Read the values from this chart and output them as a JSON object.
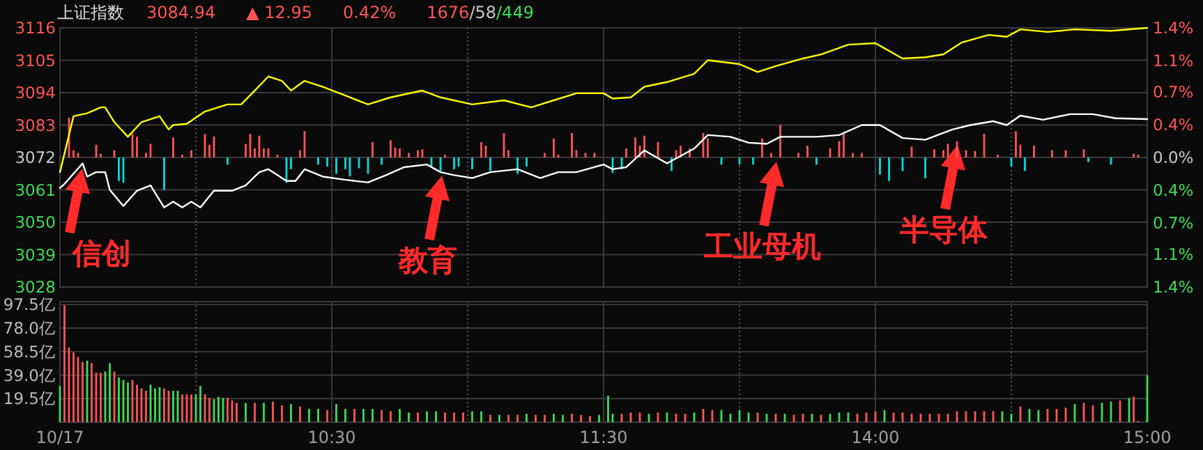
{
  "chart_data": [
    {
      "type": "line",
      "title": "上证指数",
      "annotations": [
        "3084.94",
        "▲ 12.95",
        "0.42%",
        "1676/58/449",
        "信创",
        "教育",
        "工业母机",
        "半导体"
      ],
      "categories": [
        null,
        null,
        null,
        null,
        null,
        null,
        null,
        null,
        null,
        null,
        null,
        null,
        null,
        null,
        null,
        null,
        null,
        null,
        null,
        null,
        null,
        null,
        null,
        null,
        null,
        null,
        null,
        null,
        null,
        null,
        null,
        null,
        null,
        null,
        null,
        null,
        null,
        null,
        null,
        null,
        null,
        null,
        null,
        null,
        null,
        null,
        null,
        null,
        null,
        null,
        null,
        null,
        null,
        null,
        null,
        null,
        null,
        null,
        null,
        null,
        null,
        null,
        null,
        null,
        null,
        null,
        null,
        null,
        null,
        null,
        null,
        null,
        null,
        null,
        null,
        null,
        null,
        null,
        null,
        null,
        null,
        null,
        null,
        null,
        null,
        null,
        null,
        null,
        null,
        null,
        null,
        null,
        null,
        null,
        null,
        null,
        null,
        null,
        null,
        null,
        null,
        null,
        null,
        null,
        null,
        null,
        null,
        null,
        null,
        null,
        null,
        null,
        null,
        null,
        null,
        null,
        null,
        null,
        null,
        null,
        null,
        null,
        null,
        null,
        null,
        null,
        null,
        null,
        null,
        null,
        null,
        null,
        null,
        null,
        null,
        null,
        null,
        null,
        null,
        null,
        null,
        null,
        null,
        null,
        null,
        null,
        null,
        null,
        null,
        null,
        null,
        null,
        null,
        null,
        null,
        null,
        null,
        null,
        null,
        null,
        null,
        null,
        null,
        null,
        null,
        null,
        null,
        null,
        null,
        null,
        null,
        null,
        null,
        null,
        null,
        null,
        null,
        null,
        null,
        null,
        null,
        null,
        null,
        null,
        null,
        null,
        null,
        null,
        null,
        null,
        null,
        null,
        null,
        null,
        null,
        null,
        null,
        null,
        null,
        null,
        null,
        null,
        null,
        null,
        null,
        null,
        null,
        null,
        null,
        null,
        null,
        null,
        null,
        null,
        null,
        null,
        null,
        null,
        null,
        null,
        null,
        null,
        null,
        null,
        null,
        null,
        null,
        null,
        null,
        null,
        null,
        null,
        null,
        null,
        null,
        null,
        null,
        null,
        null,
        null,
        null
      ],
      "ylim": [
        3028,
        3116
      ],
      "yticks": [
        3028,
        3039,
        3050,
        3061,
        3072,
        3083,
        3094,
        3105,
        3116
      ],
      "y2lim": [
        -1.43,
        1.43
      ],
      "y2ticks": [
        {
          "value": -1.43,
          "label": "1.4%"
        },
        {
          "value": -1.07,
          "label": "1.1%"
        },
        {
          "value": -0.72,
          "label": "0.7%"
        },
        {
          "value": -0.36,
          "label": "0.4%"
        },
        {
          "value": 0,
          "label": "0.0%"
        },
        {
          "value": 0.36,
          "label": "0.4%"
        },
        {
          "value": 0.72,
          "label": "0.7%"
        },
        {
          "value": 1.07,
          "label": "1.1%"
        },
        {
          "value": 1.43,
          "label": "1.4%"
        }
      ],
      "grid": true,
      "tick_labels": "y",
      "series": [
        {
          "color": "#ffff00",
          "values": [
            3067,
            null,
            3079.6,
            3086,
            null,
            null,
            3087,
            null,
            null,
            3089,
            3089,
            null,
            3084,
            null,
            null,
            3079,
            null,
            null,
            3084,
            null,
            null,
            null,
            3086,
            null,
            3081.5,
            3083,
            null,
            null,
            3083.4,
            null,
            null,
            null,
            3087.6,
            null,
            null,
            null,
            null,
            3090,
            null,
            null,
            3090,
            null,
            null,
            3094.7,
            null,
            null,
            3099.5,
            null,
            null,
            3098,
            null,
            3094.7,
            null,
            null,
            3098,
            null,
            null,
            null,
            3096,
            null,
            null,
            null,
            null,
            3093,
            null,
            null,
            null,
            null,
            3090,
            null,
            null,
            null,
            null,
            3092.4,
            null,
            null,
            null,
            null,
            null,
            null,
            3094.7,
            null,
            null,
            null,
            3092.4,
            null,
            null,
            null,
            null,
            null,
            null,
            3090,
            null,
            null,
            null,
            null,
            null,
            null,
            3091.4,
            null,
            null,
            null,
            null,
            null,
            3089,
            null,
            null,
            null,
            null,
            3091.4,
            null,
            null,
            null,
            null,
            3093.8,
            null,
            null,
            null,
            null,
            null,
            3093.8,
            null,
            3092,
            null,
            null,
            null,
            3092.4,
            null,
            null,
            3096,
            null,
            null,
            null,
            null,
            3097.6,
            null,
            null,
            null,
            null,
            null,
            3100.4,
            null,
            null,
            3105,
            null,
            null,
            null,
            null,
            null,
            null,
            3103.7,
            null,
            null,
            null,
            3101,
            null,
            null,
            null,
            3103,
            null,
            null,
            null,
            null,
            null,
            3105.6,
            null,
            null,
            null,
            3107,
            null,
            null,
            null,
            null,
            null,
            3110.3,
            null,
            null,
            null,
            null,
            null,
            3110.8,
            null,
            null,
            null,
            null,
            null,
            3105.6,
            null,
            null,
            null,
            null,
            3106,
            null,
            null,
            null,
            3107,
            null,
            null,
            null,
            3111,
            null,
            null,
            null,
            null,
            null,
            3113.6,
            null,
            null,
            null,
            3113,
            null,
            null,
            3115.5,
            null,
            null,
            null,
            null,
            null,
            3114.6,
            null,
            null,
            null,
            null,
            null,
            3115.5,
            null,
            null,
            null,
            null,
            null,
            null,
            null,
            3115,
            null,
            null,
            null,
            null,
            null,
            null,
            null,
            3116
          ]
        },
        {
          "color": "#ffffff",
          "values": [
            3061.6,
            3063,
            null,
            null,
            null,
            3070,
            3065.5,
            null,
            3067,
            null,
            3067,
            3061,
            null,
            null,
            3055.5,
            null,
            null,
            3060.7,
            null,
            null,
            3062.5,
            null,
            null,
            3055,
            null,
            3057,
            null,
            3055,
            null,
            3057,
            null,
            3055,
            null,
            null,
            3060.7,
            null,
            null,
            null,
            3060.7,
            null,
            null,
            3062.5,
            null,
            null,
            3067,
            null,
            3068,
            null,
            3066,
            null,
            3064,
            null,
            3064,
            null,
            3068,
            null,
            null,
            null,
            3065.5,
            null,
            null,
            null,
            null,
            3064.4,
            null,
            null,
            null,
            null,
            3063.5,
            null,
            null,
            null,
            3066,
            null,
            null,
            null,
            3068.7,
            null,
            null,
            null,
            null,
            3069.6,
            null,
            null,
            3067,
            null,
            null,
            3066,
            null,
            null,
            null,
            3065,
            null,
            null,
            null,
            3067,
            null,
            null,
            null,
            null,
            null,
            3068,
            null,
            null,
            null,
            null,
            3065,
            null,
            null,
            null,
            3067,
            null,
            null,
            null,
            3067,
            null,
            null,
            null,
            null,
            null,
            3069.6,
            null,
            3068,
            null,
            null,
            3068.7,
            null,
            null,
            null,
            3074.4,
            null,
            null,
            null,
            null,
            3070,
            null,
            null,
            null,
            null,
            null,
            3075,
            null,
            null,
            3079.6,
            null,
            null,
            null,
            null,
            3079,
            null,
            null,
            null,
            3077,
            null,
            null,
            null,
            3076.6,
            null,
            null,
            3079,
            null,
            null,
            null,
            3079,
            null,
            null,
            null,
            3079,
            null,
            null,
            null,
            null,
            3079.6,
            null,
            null,
            null,
            null,
            3083,
            null,
            null,
            null,
            3083,
            null,
            null,
            null,
            null,
            3078.6,
            null,
            null,
            null,
            null,
            3078,
            null,
            null,
            null,
            null,
            null,
            3081.5,
            null,
            null,
            null,
            3083,
            null,
            null,
            null,
            null,
            3084.3,
            null,
            null,
            3083,
            null,
            null,
            3086.2,
            null,
            null,
            null,
            null,
            3084.8,
            null,
            null,
            null,
            null,
            null,
            3086.7,
            null,
            null,
            null,
            null,
            3086.7,
            null,
            null,
            null,
            null,
            3085.3,
            null,
            null,
            null,
            null,
            null,
            null,
            3085
          ]
        },
        {
          "type": "bar",
          "axis": "y2",
          "color": "#ff5555",
          "values": [
            null,
            null,
            0.44,
            0.08,
            0.05,
            null,
            null,
            null,
            0.14,
            0.04,
            null,
            null,
            0.08,
            null,
            null,
            null,
            0.26,
            0.23,
            null,
            0.05,
            0.15,
            null,
            null,
            null,
            null,
            0.22,
            null,
            0.03,
            null,
            0.08,
            null,
            null,
            0.26,
            0.14,
            0.23,
            null,
            null,
            null,
            null,
            null,
            null,
            0.15,
            0.26,
            0.1,
            0.24,
            0.1,
            0.1,
            null,
            0.03,
            null,
            null,
            null,
            null,
            0.08,
            0.29,
            null,
            null,
            null,
            null,
            null,
            null,
            null,
            null,
            null,
            null,
            null,
            null,
            null,
            null,
            0.17,
            null,
            null,
            null,
            0.19,
            0.11,
            0.1,
            null,
            0.05,
            null,
            0.08,
            0.09,
            null,
            null,
            null,
            null,
            0.03,
            null,
            null,
            null,
            null,
            null,
            null,
            null,
            0.17,
            0.13,
            null,
            null,
            null,
            0.27,
            0.08,
            null,
            null,
            null,
            null,
            null,
            null,
            null,
            0.05,
            null,
            0.21,
            0.03,
            null,
            null,
            0.27,
            0.08,
            null,
            0.05,
            null,
            0.05,
            null,
            null,
            null,
            null,
            null,
            null,
            0.1,
            null,
            0.22,
            0.13,
            0.24,
            null,
            null,
            0.17,
            null,
            null,
            null,
            0.08,
            0.13,
            null,
            0.1,
            null,
            null,
            0.27,
            0.21,
            null,
            null,
            null,
            null,
            null,
            null,
            null,
            null,
            null,
            null,
            null,
            0.21,
            null,
            0.05,
            null,
            0.36,
            null,
            null,
            null,
            0.05,
            null,
            0.13,
            null,
            null,
            null,
            null,
            0.1,
            null,
            0.18,
            0.26,
            null,
            0.05,
            null,
            0.05,
            null,
            null,
            null,
            null,
            null,
            null,
            null,
            null,
            null,
            null,
            0.12,
            null,
            null,
            null,
            null,
            0.09,
            null,
            0.08,
            0.15,
            null,
            0.18,
            null,
            0.08,
            null,
            0.07,
            null,
            0.26,
            null,
            null,
            0.03,
            null,
            null,
            null,
            0.29,
            0.14,
            null,
            null,
            0.13,
            null,
            null,
            null,
            0.08,
            null,
            null,
            0.08,
            null,
            null,
            null,
            0.09,
            null,
            null,
            null,
            null,
            null,
            null,
            null,
            null,
            null,
            null,
            0.04,
            0.03,
            null,
            null
          ]
        },
        {
          "type": "bar",
          "axis": "y2",
          "color": "#00dcdc",
          "values": [
            null,
            null,
            null,
            null,
            null,
            null,
            null,
            null,
            null,
            null,
            null,
            null,
            null,
            -0.26,
            -0.28,
            null,
            null,
            null,
            null,
            null,
            null,
            null,
            null,
            -0.36,
            null,
            null,
            null,
            null,
            null,
            null,
            null,
            null,
            null,
            null,
            null,
            null,
            null,
            -0.08,
            null,
            null,
            null,
            null,
            null,
            null,
            null,
            null,
            null,
            null,
            null,
            null,
            -0.28,
            -0.13,
            null,
            null,
            null,
            null,
            null,
            -0.08,
            null,
            -0.1,
            null,
            -0.18,
            null,
            -0.13,
            -0.21,
            null,
            -0.12,
            null,
            -0.18,
            null,
            null,
            -0.08,
            null,
            null,
            null,
            null,
            null,
            null,
            null,
            null,
            null,
            null,
            -0.1,
            null,
            -0.15,
            null,
            null,
            -0.13,
            -0.1,
            null,
            null,
            -0.13,
            null,
            null,
            null,
            -0.15,
            null,
            null,
            null,
            null,
            null,
            -0.18,
            null,
            -0.1,
            null,
            null,
            null,
            null,
            null,
            null,
            null,
            null,
            null,
            null,
            null,
            null,
            null,
            null,
            null,
            null,
            null,
            null,
            -0.17,
            null,
            -0.13,
            null,
            null,
            null,
            null,
            null,
            null,
            null,
            null,
            null,
            null,
            -0.15,
            null,
            null,
            null,
            null,
            null,
            null,
            null,
            null,
            null,
            null,
            -0.08,
            null,
            null,
            null,
            -0.08,
            null,
            null,
            -0.08,
            null,
            null,
            null,
            null,
            null,
            null,
            null,
            null,
            null,
            null,
            null,
            null,
            null,
            -0.08,
            null,
            null,
            null,
            null,
            null,
            null,
            null,
            null,
            null,
            null,
            null,
            null,
            null,
            -0.19,
            null,
            -0.26,
            null,
            null,
            -0.15,
            null,
            null,
            null,
            null,
            -0.23,
            null,
            null,
            null,
            null,
            null,
            null,
            null,
            null,
            null,
            null,
            null,
            null,
            null,
            null,
            null,
            null,
            null,
            null,
            -0.1,
            null,
            null,
            -0.15,
            null,
            null,
            null,
            null,
            null,
            null,
            null,
            null,
            null,
            null,
            null,
            null,
            null,
            -0.05,
            null,
            null,
            null,
            null,
            -0.08,
            null,
            null,
            null,
            null,
            null,
            null,
            null,
            null
          ]
        }
      ]
    },
    {
      "type": "bar",
      "categories": [
        "10/17",
        null,
        null,
        null,
        null,
        null,
        null,
        null,
        null,
        null,
        null,
        null,
        null,
        null,
        null,
        null,
        null,
        null,
        null,
        null,
        null,
        null,
        null,
        null,
        null,
        null,
        null,
        null,
        null,
        null,
        null,
        null,
        null,
        null,
        null,
        null,
        null,
        null,
        null,
        null,
        null,
        null,
        null,
        null,
        null,
        null,
        null,
        null,
        null,
        null,
        null,
        null,
        null,
        null,
        null,
        null,
        null,
        null,
        null,
        null,
        "10:30",
        null,
        null,
        null,
        null,
        null,
        null,
        null,
        null,
        null,
        null,
        null,
        null,
        null,
        null,
        null,
        null,
        null,
        null,
        null,
        null,
        null,
        null,
        null,
        null,
        null,
        null,
        null,
        null,
        null,
        null,
        null,
        null,
        null,
        null,
        null,
        null,
        null,
        null,
        null,
        null,
        null,
        null,
        null,
        null,
        null,
        null,
        null,
        null,
        null,
        null,
        null,
        null,
        null,
        null,
        null,
        null,
        null,
        null,
        null,
        "11:30",
        null,
        null,
        null,
        null,
        null,
        null,
        null,
        null,
        null,
        null,
        null,
        null,
        null,
        null,
        null,
        null,
        null,
        null,
        null,
        null,
        null,
        null,
        null,
        null,
        null,
        null,
        null,
        null,
        null,
        null,
        null,
        null,
        null,
        null,
        null,
        null,
        null,
        null,
        null,
        null,
        null,
        null,
        null,
        null,
        null,
        null,
        null,
        null,
        null,
        null,
        null,
        null,
        null,
        null,
        null,
        null,
        null,
        null,
        null,
        "14:00",
        null,
        null,
        null,
        null,
        null,
        null,
        null,
        null,
        null,
        null,
        null,
        null,
        null,
        null,
        null,
        null,
        null,
        null,
        null,
        null,
        null,
        null,
        null,
        null,
        null,
        null,
        null,
        null,
        null,
        null,
        null,
        null,
        null,
        null,
        null,
        null,
        null,
        null,
        null,
        null,
        null,
        null,
        null,
        null,
        null,
        null,
        null,
        null,
        null,
        null,
        null,
        null,
        null,
        null,
        null,
        null,
        null,
        null,
        null,
        "15:00"
      ],
      "ylim": [
        0,
        100
      ],
      "yticks": [
        {
          "value": 19.5,
          "label": "19.5亿"
        },
        {
          "value": 39.0,
          "label": "39.0亿"
        },
        {
          "value": 58.5,
          "label": "58.5亿"
        },
        {
          "value": 78.0,
          "label": "78.0亿"
        },
        {
          "value": 97.5,
          "label": "97.5亿"
        }
      ],
      "grid": true,
      "series": [
        {
          "color": "#ff5555",
          "values": [
            null,
            97,
            62,
            58,
            54,
            50,
            null,
            49,
            41,
            41,
            null,
            null,
            42,
            null,
            null,
            null,
            35,
            31,
            28,
            26,
            null,
            null,
            null,
            28,
            26,
            null,
            null,
            23,
            23,
            23,
            null,
            null,
            23,
            20,
            null,
            null,
            null,
            20,
            18,
            16,
            null,
            null,
            null,
            16,
            null,
            null,
            null,
            17,
            null,
            14,
            null,
            null,
            null,
            13,
            null,
            null,
            null,
            null,
            null,
            10,
            null,
            null,
            null,
            null,
            null,
            11,
            null,
            null,
            null,
            null,
            null,
            10,
            null,
            9,
            null,
            null,
            null,
            null,
            null,
            8,
            null,
            null,
            null,
            null,
            null,
            8,
            null,
            8,
            null,
            8,
            null,
            null,
            null,
            null,
            null,
            6,
            null,
            null,
            null,
            6,
            null,
            6,
            null,
            null,
            null,
            6,
            null,
            6,
            null,
            null,
            null,
            null,
            null,
            7,
            null,
            6,
            null,
            5,
            null,
            null,
            null,
            null,
            null,
            null,
            7,
            null,
            8,
            null,
            8,
            null,
            null,
            null,
            8,
            null,
            null,
            null,
            7,
            null,
            7,
            null,
            null,
            null,
            11,
            null,
            10,
            null,
            null,
            null,
            null,
            null,
            null,
            null,
            null,
            null,
            8,
            null,
            null,
            null,
            7,
            null,
            null,
            null,
            6,
            null,
            7,
            null,
            null,
            null,
            6,
            null,
            null,
            null,
            null,
            null,
            null,
            null,
            7,
            null,
            8,
            null,
            9,
            null,
            null,
            null,
            8,
            null,
            8,
            null,
            7,
            null,
            7,
            null,
            7,
            null,
            7,
            null,
            7,
            null,
            9,
            null,
            9,
            null,
            9,
            null,
            9,
            null,
            9,
            null,
            null,
            null,
            null,
            null,
            13,
            null,
            null,
            null,
            null,
            null,
            11,
            null,
            11,
            null,
            12,
            null,
            null,
            null,
            16,
            null,
            14,
            null,
            null,
            null,
            null,
            null,
            18,
            null,
            null,
            21,
            1,
            null,
            null
          ]
        },
        {
          "color": "#3ddc57",
          "values": [
            30,
            null,
            null,
            null,
            null,
            null,
            51,
            null,
            null,
            null,
            42,
            49,
            null,
            37,
            35,
            33,
            null,
            null,
            null,
            null,
            31,
            28,
            29,
            null,
            null,
            26,
            26,
            null,
            null,
            null,
            23,
            30,
            null,
            null,
            19,
            21,
            20,
            null,
            null,
            null,
            null,
            16,
            null,
            null,
            null,
            16,
            null,
            null,
            null,
            null,
            null,
            15,
            null,
            null,
            null,
            11,
            null,
            11,
            null,
            null,
            null,
            15,
            null,
            11,
            null,
            null,
            null,
            11,
            null,
            11,
            null,
            null,
            null,
            null,
            null,
            11,
            null,
            8,
            null,
            null,
            null,
            9,
            null,
            9,
            null,
            null,
            null,
            null,
            null,
            null,
            null,
            9,
            null,
            9,
            null,
            null,
            null,
            6,
            null,
            null,
            null,
            null,
            null,
            7,
            null,
            null,
            null,
            null,
            null,
            7,
            null,
            6,
            null,
            null,
            null,
            null,
            null,
            null,
            null,
            6,
            null,
            22,
            7,
            null,
            null,
            null,
            null,
            null,
            null,
            null,
            7,
            null,
            null,
            null,
            8,
            null,
            null,
            null,
            null,
            null,
            8,
            null,
            null,
            null,
            null,
            null,
            10,
            null,
            7,
            null,
            10,
            null,
            8,
            null,
            null,
            null,
            7,
            null,
            null,
            null,
            7,
            null,
            null,
            null,
            null,
            null,
            7,
            null,
            null,
            null,
            7,
            null,
            8,
            null,
            8,
            null,
            null,
            null,
            null,
            null,
            null,
            null,
            10,
            null,
            null,
            null,
            null,
            null,
            null,
            null,
            null,
            null,
            null,
            null,
            null,
            null,
            null,
            null,
            null,
            null,
            null,
            null,
            null,
            null,
            null,
            null,
            null,
            null,
            9,
            null,
            7,
            null,
            null,
            null,
            11,
            null,
            10,
            null,
            null,
            null,
            null,
            null,
            null,
            null,
            15,
            null,
            null,
            null,
            null,
            null,
            16,
            null,
            17,
            null,
            null,
            null,
            20,
            null,
            null,
            null,
            39
          ]
        }
      ]
    }
  ]
}
